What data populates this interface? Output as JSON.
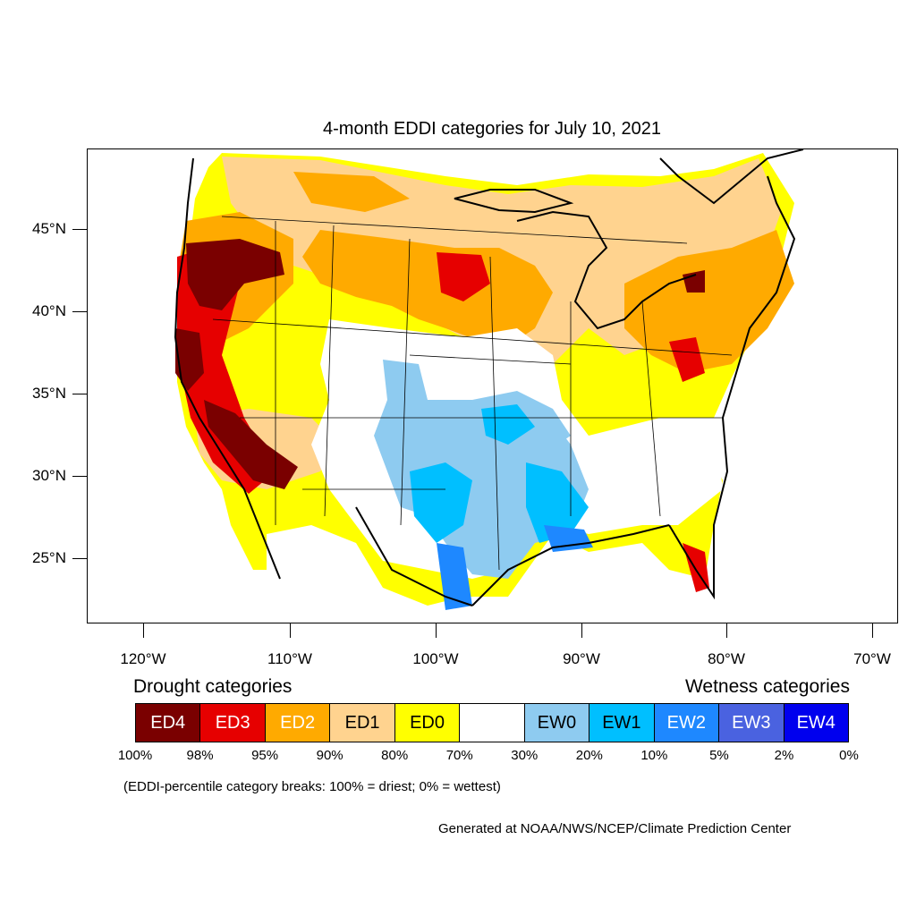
{
  "title": "4-month EDDI categories for July 10, 2021",
  "lat_labels": [
    "45°N",
    "40°N",
    "35°N",
    "30°N",
    "25°N"
  ],
  "lon_labels": [
    "120°W",
    "110°W",
    "100°W",
    "90°W",
    "80°W",
    "70°W"
  ],
  "legend": {
    "drought_heading": "Drought categories",
    "wetness_heading": "Wetness categories",
    "categories": [
      {
        "label": "ED4",
        "color": "#7a0000",
        "text_color": "#ffffff"
      },
      {
        "label": "ED3",
        "color": "#e60000",
        "text_color": "#ffffff"
      },
      {
        "label": "ED2",
        "color": "#ffaa00",
        "text_color": "#ffffff"
      },
      {
        "label": "ED1",
        "color": "#ffd38f",
        "text_color": "#000000"
      },
      {
        "label": "ED0",
        "color": "#ffff00",
        "text_color": "#000000"
      },
      {
        "label": "",
        "color": "#ffffff",
        "text_color": "#000000"
      },
      {
        "label": "EW0",
        "color": "#8ecbf0",
        "text_color": "#000000"
      },
      {
        "label": "EW1",
        "color": "#00bfff",
        "text_color": "#000000"
      },
      {
        "label": "EW2",
        "color": "#1e88ff",
        "text_color": "#ffffff"
      },
      {
        "label": "EW3",
        "color": "#4a62e0",
        "text_color": "#ffffff"
      },
      {
        "label": "EW4",
        "color": "#0000ee",
        "text_color": "#ffffff"
      }
    ],
    "percentiles": [
      "100%",
      "98%",
      "95%",
      "90%",
      "80%",
      "70%",
      "30%",
      "20%",
      "10%",
      "5%",
      "2%",
      "0%"
    ]
  },
  "note": "(EDDI-percentile category breaks: 100% = driest; 0% = wettest)",
  "credit": "Generated at NOAA/NWS/NCEP/Climate Prediction Center"
}
